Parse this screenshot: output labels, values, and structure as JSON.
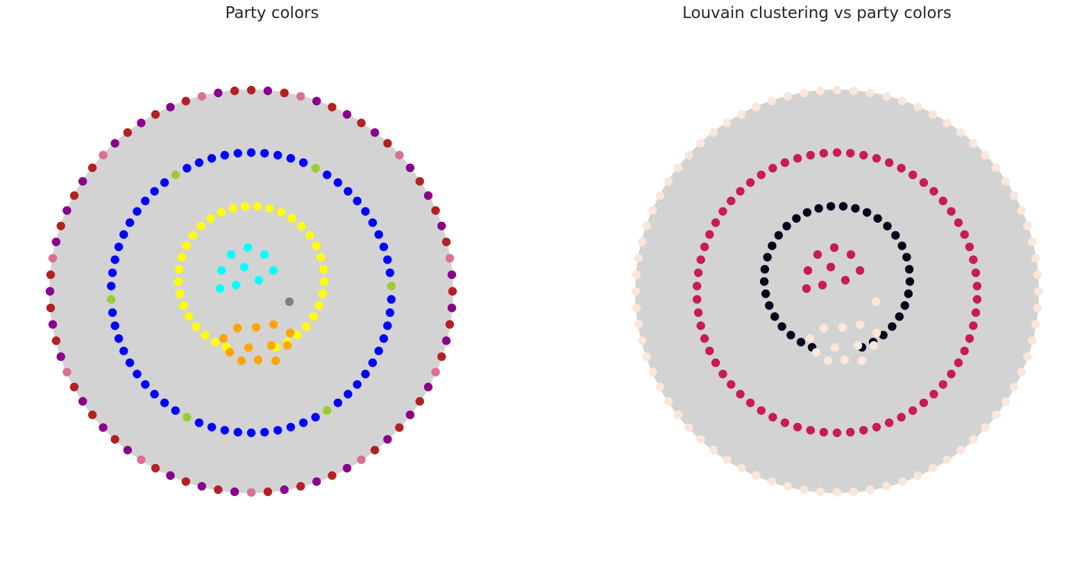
{
  "figure": {
    "background": "#ffffff",
    "hull_color": "#d3d3d3"
  },
  "panels": [
    {
      "title": "Party colors",
      "kind": "network-graph",
      "layout": "concentric-shells",
      "rings": [
        {
          "name": "outer",
          "center": [
            362,
            420
          ],
          "radius": 290,
          "count": 76,
          "start_deg": 270,
          "colors": [
            "#b22222",
            "#8b008b",
            "#b22222",
            "#db7093",
            "#8b008b",
            "#b22222",
            "#8b008b"
          ]
        },
        {
          "name": "middle",
          "center": [
            362,
            422
          ],
          "radius": 202,
          "count": 66,
          "start_deg": 270,
          "colors": [
            "#0000ff",
            "#0000ff",
            "#0000ff",
            "#0000ff",
            "#0000ff",
            "#9acd32",
            "#0000ff",
            "#0000ff",
            "#0000ff",
            "#0000ff",
            "#0000ff"
          ]
        },
        {
          "name": "inner-arc",
          "center": [
            362,
            402
          ],
          "radius": 105,
          "count": 34,
          "start_deg": 270,
          "arc": [
            -160,
            160
          ],
          "colors": [
            "#ffff00"
          ]
        }
      ],
      "clusters": [
        {
          "name": "cyan-group",
          "color": "#00ffff",
          "points": [
            [
              357,
              357
            ],
            [
              333,
              367
            ],
            [
              381,
              367
            ],
            [
              319,
              390
            ],
            [
              352,
              385
            ],
            [
              394,
              390
            ],
            [
              317,
              416
            ],
            [
              340,
              411
            ],
            [
              373,
              404
            ]
          ]
        },
        {
          "name": "orange-group",
          "color": "#ffa500",
          "points": [
            [
              342,
              473
            ],
            [
              369,
              472
            ],
            [
              394,
              468
            ],
            [
              418,
              480
            ],
            [
              322,
              488
            ],
            [
              391,
              498
            ],
            [
              414,
              498
            ],
            [
              331,
              508
            ],
            [
              358,
              501
            ],
            [
              348,
              520
            ],
            [
              372,
              519
            ],
            [
              397,
              520
            ]
          ]
        },
        {
          "name": "gray-node",
          "color": "#808080",
          "points": [
            [
              417,
              435
            ]
          ]
        }
      ]
    },
    {
      "title": "Louvain clustering vs party colors",
      "kind": "network-graph",
      "layout": "concentric-shells",
      "rings": [
        {
          "name": "outer",
          "center": [
            421,
            420
          ],
          "radius": 290,
          "count": 76,
          "start_deg": 270,
          "colors": [
            "#fae7dc"
          ]
        },
        {
          "name": "middle",
          "center": [
            421,
            422
          ],
          "radius": 202,
          "count": 66,
          "start_deg": 270,
          "colors": [
            "#c81c52"
          ]
        },
        {
          "name": "inner-arc",
          "center": [
            421,
            402
          ],
          "radius": 105,
          "count": 34,
          "start_deg": 270,
          "arc": [
            -160,
            160
          ],
          "colors": [
            "#03051a"
          ]
        }
      ],
      "clusters": [
        {
          "name": "crimson-group",
          "color": "#c81c52",
          "points": [
            [
              417,
              357
            ],
            [
              393,
              367
            ],
            [
              441,
              367
            ],
            [
              379,
              390
            ],
            [
              412,
              385
            ],
            [
              454,
              390
            ],
            [
              377,
              416
            ],
            [
              400,
              411
            ],
            [
              433,
              404
            ]
          ]
        },
        {
          "name": "pale-group",
          "color": "#fae7dc",
          "points": [
            [
              402,
              473
            ],
            [
              429,
              472
            ],
            [
              454,
              468
            ],
            [
              478,
              480
            ],
            [
              382,
              488
            ],
            [
              451,
              498
            ],
            [
              474,
              498
            ],
            [
              391,
              508
            ],
            [
              418,
              501
            ],
            [
              408,
              520
            ],
            [
              432,
              519
            ],
            [
              457,
              520
            ],
            [
              477,
              435
            ]
          ]
        }
      ]
    }
  ]
}
